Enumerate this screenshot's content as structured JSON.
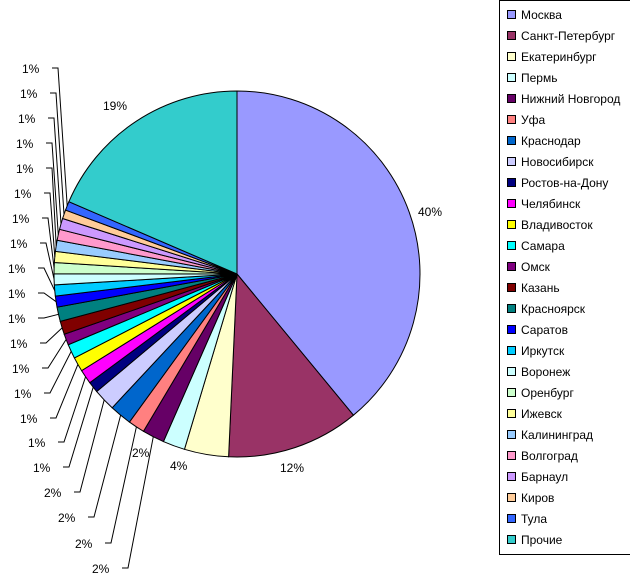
{
  "chart_data": {
    "type": "pie",
    "title": "",
    "start_angle_deg": 0,
    "direction": "clockwise",
    "legend_position": "right",
    "slices": [
      {
        "label": "Москва",
        "value": 40,
        "text": "40%",
        "color": "#9999FF"
      },
      {
        "label": "Санкт-Петербург",
        "value": 12,
        "text": "12%",
        "color": "#993366"
      },
      {
        "label": "Екатеринбург",
        "value": 4,
        "text": "4%",
        "color": "#FFFFCC"
      },
      {
        "label": "Пермь",
        "value": 2,
        "text": "2%",
        "color": "#CCFFFF"
      },
      {
        "label": "Нижний Новгород",
        "value": 2,
        "text": "2%",
        "color": "#660066"
      },
      {
        "label": "Уфа",
        "value": 1.5,
        "text": "2%",
        "color": "#FF8080"
      },
      {
        "label": "Краснодар",
        "value": 2,
        "text": "2%",
        "color": "#0066CC"
      },
      {
        "label": "Новосибирск",
        "value": 2,
        "text": "2%",
        "color": "#CCCCFF"
      },
      {
        "label": "Ростов-на-Дону",
        "value": 1,
        "text": "1%",
        "color": "#000080"
      },
      {
        "label": "Челябинск",
        "value": 1.3,
        "text": "1%",
        "color": "#FF00FF"
      },
      {
        "label": "Владивосток",
        "value": 1.3,
        "text": "1%",
        "color": "#FFFF00"
      },
      {
        "label": "Самара",
        "value": 1.3,
        "text": "1%",
        "color": "#00FFFF"
      },
      {
        "label": "Омск",
        "value": 1,
        "text": "1%",
        "color": "#800080"
      },
      {
        "label": "Казань",
        "value": 1.2,
        "text": "1%",
        "color": "#800000"
      },
      {
        "label": "Красноярск",
        "value": 1.3,
        "text": "1%",
        "color": "#008080"
      },
      {
        "label": "Саратов",
        "value": 1,
        "text": "1%",
        "color": "#0000FF"
      },
      {
        "label": "Иркутск",
        "value": 1,
        "text": "1%",
        "color": "#00CCFF"
      },
      {
        "label": "Воронеж",
        "value": 1,
        "text": "1%",
        "color": "#CCFFFF"
      },
      {
        "label": "Оренбург",
        "value": 1,
        "text": "1%",
        "color": "#CCFFCC"
      },
      {
        "label": "Ижевск",
        "value": 1,
        "text": "1%",
        "color": "#FFFF99"
      },
      {
        "label": "Калининград",
        "value": 1,
        "text": "1%",
        "color": "#99CCFF"
      },
      {
        "label": "Волгоград",
        "value": 1,
        "text": "1%",
        "color": "#FF99CC"
      },
      {
        "label": "Барнаул",
        "value": 1,
        "text": "1%",
        "color": "#CC99FF"
      },
      {
        "label": "Киров",
        "value": 0.8,
        "text": "1%",
        "color": "#FFCC99"
      },
      {
        "label": "Тула",
        "value": 0.8,
        "text": "1%",
        "color": "#3366FF"
      },
      {
        "label": "Прочие",
        "value": 19,
        "text": "19%",
        "color": "#33CCCC"
      }
    ]
  }
}
